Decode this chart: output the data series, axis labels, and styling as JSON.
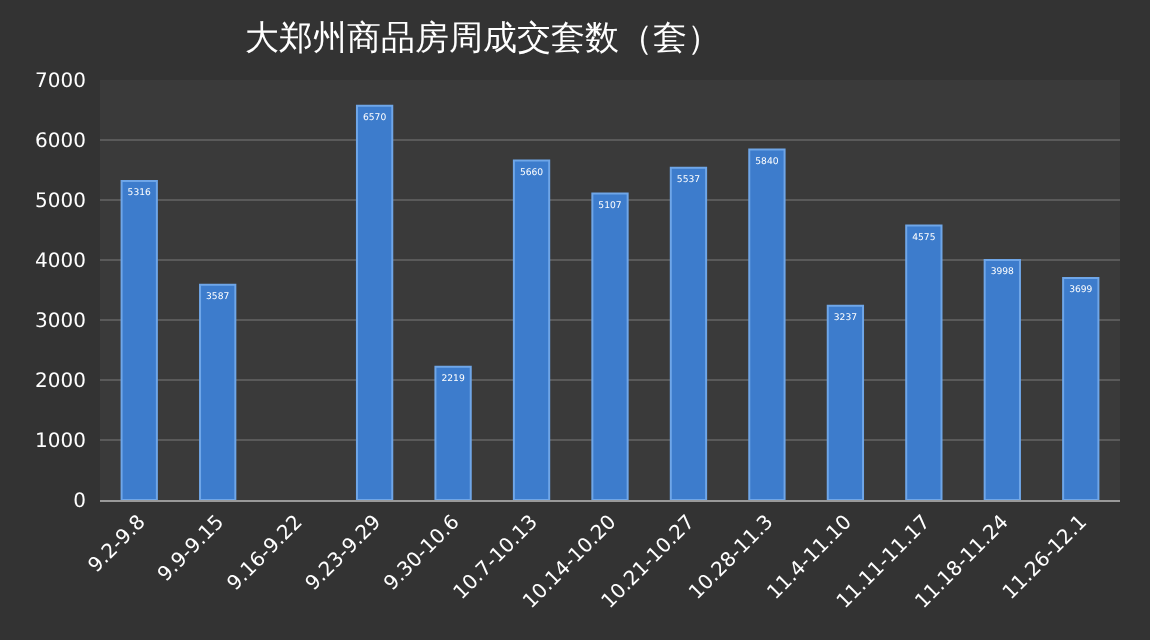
{
  "chart_data": {
    "type": "bar",
    "title": "大郑州商品房周成交套数（套）",
    "categories": [
      "9.2-9.8",
      "9.9-9.15",
      "9.16-9.22",
      "9.23-9.29",
      "9.30-10.6",
      "10.7-10.13",
      "10.14-10.20",
      "10.21-10.27",
      "10.28-11.3",
      "11.4-11.10",
      "11.11-11.17",
      "11.18-11.24",
      "11.26-12.1"
    ],
    "values": [
      5316,
      3587,
      null,
      6570,
      2219,
      5660,
      5107,
      5537,
      5840,
      3237,
      4575,
      3998,
      3699
    ],
    "value_labels": [
      "5316",
      "3587",
      null,
      "6570",
      "2219",
      "5660",
      "5107",
      "5537",
      "5840",
      "3237",
      "4575",
      "3998",
      "3699"
    ],
    "color": "#3d7ccc",
    "ylim": [
      0,
      7000
    ],
    "yticks": [
      0,
      1000,
      2000,
      3000,
      4000,
      5000,
      6000,
      7000
    ],
    "grid": "y"
  }
}
